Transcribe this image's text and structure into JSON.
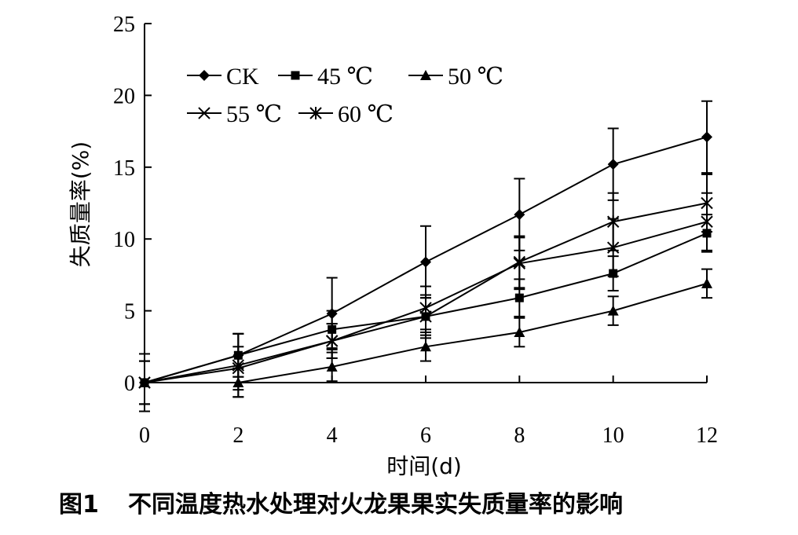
{
  "caption": {
    "figure_label": "图1",
    "text": "不同温度热水处理对火龙果果实失质量率的影响"
  },
  "chart_data": {
    "type": "line",
    "title": "",
    "xlabel": "时间(d)",
    "ylabel": "失质量率(%)",
    "xlim": [
      0,
      12
    ],
    "ylim": [
      0,
      25
    ],
    "x_ticks": [
      0,
      2,
      4,
      6,
      8,
      10,
      12
    ],
    "y_ticks": [
      0,
      5,
      10,
      15,
      20,
      25
    ],
    "legend_position": "top-left",
    "x": [
      0,
      2,
      4,
      6,
      8,
      10,
      12
    ],
    "series": [
      {
        "name": "CK",
        "marker": "diamond",
        "values": [
          0,
          1.9,
          4.8,
          8.4,
          11.7,
          15.2,
          17.1
        ],
        "errors": [
          2.0,
          1.5,
          2.5,
          2.5,
          2.5,
          2.5,
          2.5
        ]
      },
      {
        "name": "45 ℃",
        "marker": "square",
        "values": [
          0,
          1.9,
          3.7,
          4.6,
          5.9,
          7.6,
          10.4
        ],
        "errors": [
          1.5,
          1.5,
          1.3,
          1.3,
          1.3,
          1.2,
          1.3
        ]
      },
      {
        "name": "50 ℃",
        "marker": "triangle",
        "values": [
          0,
          0,
          1.1,
          2.5,
          3.5,
          5.0,
          6.9
        ],
        "errors": [
          1.5,
          1.0,
          1.0,
          1.0,
          1.0,
          1.0,
          1.0
        ]
      },
      {
        "name": "55 ℃",
        "marker": "x",
        "values": [
          0,
          1.0,
          2.9,
          5.2,
          8.3,
          9.4,
          11.2
        ],
        "errors": [
          1.5,
          1.5,
          1.2,
          1.5,
          1.8,
          2.0,
          2.0
        ]
      },
      {
        "name": "60 ℃",
        "marker": "star",
        "values": [
          0,
          1.2,
          2.9,
          4.6,
          8.4,
          11.2,
          12.5
        ],
        "errors": [
          1.5,
          2.2,
          1.2,
          1.5,
          1.8,
          2.0,
          2.0
        ]
      }
    ]
  }
}
